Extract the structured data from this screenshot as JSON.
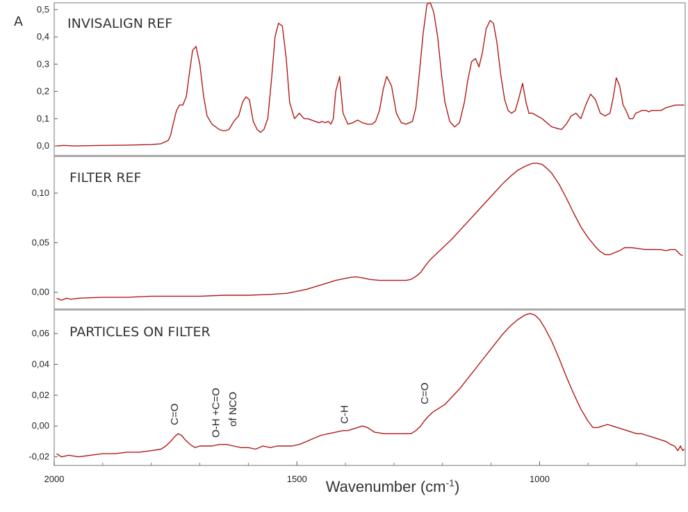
{
  "figure_label": "A",
  "colors": {
    "trace": "#b01818",
    "frame": "#8c8c8c",
    "divider": "#a8a8a8",
    "text": "#222222"
  },
  "chart_data": [
    {
      "type": "line",
      "title": "INVISALIGN REF",
      "xlabel": "",
      "ylabel": "",
      "xlim": [
        2000,
        700
      ],
      "ylim": [
        -0.01,
        0.52
      ],
      "yticks": [
        "0,0",
        "0,1",
        "0,2",
        "0,3",
        "0,4",
        "0,5"
      ],
      "ytick_values": [
        0.0,
        0.1,
        0.2,
        0.3,
        0.4,
        0.5
      ],
      "series": [
        {
          "x": [
            1995,
            1980,
            1960,
            1900,
            1850,
            1800,
            1780,
            1765,
            1760,
            1755,
            1748,
            1742,
            1735,
            1728,
            1722,
            1715,
            1708,
            1700,
            1692,
            1685,
            1675,
            1660,
            1650,
            1640,
            1630,
            1620,
            1612,
            1605,
            1598,
            1590,
            1582,
            1575,
            1568,
            1560,
            1552,
            1545,
            1538,
            1530,
            1522,
            1515,
            1505,
            1495,
            1485,
            1478,
            1470,
            1462,
            1455,
            1448,
            1442,
            1435,
            1430,
            1425,
            1420,
            1412,
            1405,
            1395,
            1385,
            1375,
            1365,
            1355,
            1345,
            1338,
            1330,
            1322,
            1315,
            1305,
            1295,
            1285,
            1275,
            1262,
            1255,
            1248,
            1240,
            1232,
            1225,
            1218,
            1210,
            1202,
            1195,
            1185,
            1175,
            1165,
            1155,
            1148,
            1140,
            1132,
            1125,
            1118,
            1110,
            1102,
            1095,
            1088,
            1080,
            1072,
            1065,
            1058,
            1050,
            1042,
            1035,
            1028,
            1022,
            1018,
            1015,
            1010,
            1005,
            995,
            985,
            975,
            965,
            955,
            945,
            935,
            925,
            915,
            905,
            895,
            885,
            875,
            865,
            855,
            848,
            842,
            835,
            828,
            822,
            815,
            808,
            802,
            795,
            790,
            785,
            780,
            775,
            770,
            760,
            750,
            740,
            730,
            720,
            710,
            702
          ],
          "y": [
            0.0,
            0.002,
            0.0,
            0.002,
            0.003,
            0.005,
            0.008,
            0.02,
            0.04,
            0.08,
            0.13,
            0.15,
            0.15,
            0.18,
            0.26,
            0.35,
            0.365,
            0.3,
            0.18,
            0.11,
            0.08,
            0.06,
            0.055,
            0.06,
            0.09,
            0.11,
            0.16,
            0.18,
            0.17,
            0.09,
            0.06,
            0.05,
            0.06,
            0.1,
            0.25,
            0.4,
            0.45,
            0.44,
            0.32,
            0.16,
            0.1,
            0.12,
            0.1,
            0.1,
            0.095,
            0.09,
            0.085,
            0.09,
            0.085,
            0.09,
            0.08,
            0.1,
            0.2,
            0.255,
            0.12,
            0.08,
            0.085,
            0.095,
            0.085,
            0.08,
            0.08,
            0.09,
            0.13,
            0.21,
            0.255,
            0.22,
            0.12,
            0.085,
            0.08,
            0.09,
            0.14,
            0.26,
            0.41,
            0.52,
            0.525,
            0.49,
            0.4,
            0.26,
            0.16,
            0.09,
            0.07,
            0.085,
            0.16,
            0.24,
            0.31,
            0.32,
            0.29,
            0.34,
            0.43,
            0.46,
            0.45,
            0.38,
            0.26,
            0.17,
            0.13,
            0.12,
            0.13,
            0.18,
            0.23,
            0.16,
            0.12,
            0.12,
            0.12,
            0.115,
            0.11,
            0.1,
            0.085,
            0.07,
            0.065,
            0.06,
            0.08,
            0.11,
            0.12,
            0.1,
            0.15,
            0.19,
            0.17,
            0.12,
            0.11,
            0.12,
            0.18,
            0.25,
            0.22,
            0.15,
            0.13,
            0.1,
            0.1,
            0.12,
            0.125,
            0.13,
            0.13,
            0.13,
            0.125,
            0.13,
            0.13,
            0.13,
            0.14,
            0.145,
            0.15,
            0.15,
            0.15
          ]
        }
      ]
    },
    {
      "type": "line",
      "title": "FILTER REF",
      "xlabel": "",
      "ylabel": "",
      "xlim": [
        2000,
        700
      ],
      "ylim": [
        -0.01,
        0.135
      ],
      "yticks": [
        "0,00",
        "0,05",
        "0,10"
      ],
      "ytick_values": [
        0.0,
        0.05,
        0.1
      ],
      "series": [
        {
          "x": [
            1995,
            1985,
            1975,
            1965,
            1950,
            1900,
            1850,
            1800,
            1750,
            1700,
            1650,
            1600,
            1550,
            1520,
            1500,
            1480,
            1460,
            1440,
            1420,
            1400,
            1390,
            1380,
            1370,
            1360,
            1350,
            1330,
            1310,
            1290,
            1275,
            1265,
            1255,
            1245,
            1235,
            1225,
            1210,
            1195,
            1180,
            1165,
            1150,
            1135,
            1120,
            1105,
            1090,
            1075,
            1060,
            1045,
            1030,
            1015,
            1005,
            995,
            985,
            975,
            960,
            945,
            930,
            915,
            900,
            885,
            875,
            865,
            855,
            845,
            835,
            825,
            810,
            795,
            780,
            765,
            750,
            740,
            730,
            720,
            710,
            705
          ],
          "y": [
            -0.006,
            -0.008,
            -0.006,
            -0.007,
            -0.006,
            -0.005,
            -0.005,
            -0.004,
            -0.004,
            -0.004,
            -0.003,
            -0.003,
            -0.002,
            -0.001,
            0.001,
            0.003,
            0.006,
            0.009,
            0.012,
            0.014,
            0.015,
            0.0155,
            0.015,
            0.014,
            0.013,
            0.012,
            0.012,
            0.012,
            0.012,
            0.013,
            0.016,
            0.02,
            0.027,
            0.033,
            0.04,
            0.047,
            0.054,
            0.062,
            0.07,
            0.078,
            0.086,
            0.094,
            0.102,
            0.11,
            0.117,
            0.123,
            0.127,
            0.13,
            0.13,
            0.129,
            0.125,
            0.12,
            0.109,
            0.095,
            0.08,
            0.066,
            0.055,
            0.046,
            0.041,
            0.038,
            0.038,
            0.04,
            0.042,
            0.045,
            0.045,
            0.044,
            0.043,
            0.043,
            0.043,
            0.042,
            0.043,
            0.043,
            0.038,
            0.037
          ]
        }
      ]
    },
    {
      "type": "line",
      "title": "PARTICLES ON FILTER",
      "xlabel": "Wavenumber (cm-1)",
      "xlabel_main": "Wavenumber (cm",
      "xlabel_sup": "-1",
      "xlabel_close": ")",
      "ylabel": "",
      "xlim": [
        2000,
        700
      ],
      "ylim": [
        -0.022,
        0.074
      ],
      "yticks": [
        "-0,02",
        "0,00",
        "0,02",
        "0,04",
        "0,06"
      ],
      "ytick_values": [
        -0.02,
        0.0,
        0.02,
        0.04,
        0.06
      ],
      "xticks": [
        "2000",
        "1500",
        "1000"
      ],
      "xtick_values": [
        2000,
        1500,
        1000
      ],
      "annotations": [
        {
          "text": "C=O",
          "x": 1745
        },
        {
          "text": "O-H +C=O",
          "x": 1660
        },
        {
          "text": "of NCO",
          "x": 1625
        },
        {
          "text": "C-H",
          "x": 1395
        },
        {
          "text": "C=O",
          "x": 1230
        }
      ],
      "series": [
        {
          "x": [
            1995,
            1985,
            1970,
            1950,
            1925,
            1900,
            1875,
            1850,
            1825,
            1800,
            1780,
            1770,
            1760,
            1752,
            1745,
            1738,
            1730,
            1720,
            1710,
            1700,
            1690,
            1675,
            1660,
            1645,
            1630,
            1615,
            1600,
            1585,
            1570,
            1555,
            1540,
            1525,
            1510,
            1495,
            1480,
            1465,
            1450,
            1435,
            1420,
            1405,
            1395,
            1385,
            1375,
            1365,
            1355,
            1340,
            1320,
            1300,
            1280,
            1265,
            1255,
            1245,
            1238,
            1230,
            1220,
            1210,
            1195,
            1180,
            1165,
            1150,
            1135,
            1120,
            1105,
            1090,
            1075,
            1060,
            1045,
            1030,
            1020,
            1010,
            1000,
            990,
            975,
            960,
            945,
            930,
            915,
            900,
            890,
            880,
            870,
            860,
            850,
            840,
            830,
            820,
            810,
            800,
            790,
            780,
            770,
            760,
            750,
            740,
            730,
            722,
            715,
            710,
            705,
            702
          ],
          "y": [
            -0.018,
            -0.02,
            -0.019,
            -0.02,
            -0.019,
            -0.018,
            -0.018,
            -0.017,
            -0.017,
            -0.016,
            -0.015,
            -0.013,
            -0.01,
            -0.007,
            -0.005,
            -0.006,
            -0.009,
            -0.012,
            -0.014,
            -0.013,
            -0.013,
            -0.013,
            -0.012,
            -0.012,
            -0.013,
            -0.014,
            -0.014,
            -0.015,
            -0.013,
            -0.014,
            -0.013,
            -0.013,
            -0.013,
            -0.012,
            -0.01,
            -0.008,
            -0.006,
            -0.005,
            -0.004,
            -0.003,
            -0.003,
            -0.002,
            -0.001,
            0.0,
            -0.001,
            -0.004,
            -0.005,
            -0.005,
            -0.005,
            -0.005,
            -0.003,
            0.0,
            0.003,
            0.006,
            0.009,
            0.011,
            0.014,
            0.019,
            0.024,
            0.03,
            0.036,
            0.042,
            0.048,
            0.054,
            0.06,
            0.065,
            0.069,
            0.072,
            0.073,
            0.072,
            0.069,
            0.064,
            0.055,
            0.044,
            0.032,
            0.021,
            0.011,
            0.003,
            -0.001,
            -0.001,
            0.0,
            0.001,
            0.0,
            -0.001,
            -0.002,
            -0.003,
            -0.004,
            -0.005,
            -0.005,
            -0.006,
            -0.007,
            -0.008,
            -0.009,
            -0.01,
            -0.012,
            -0.013,
            -0.016,
            -0.013,
            -0.016,
            -0.015
          ]
        }
      ]
    }
  ]
}
